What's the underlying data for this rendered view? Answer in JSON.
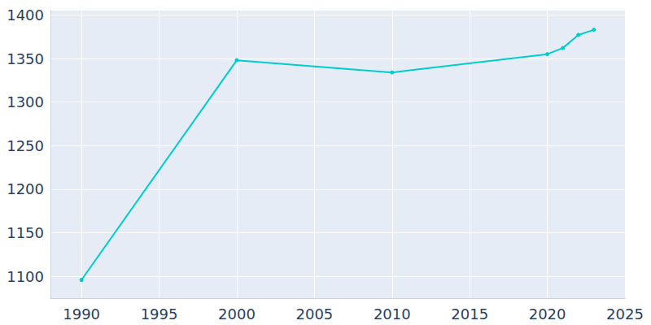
{
  "chart_data": {
    "type": "line",
    "x": [
      1990,
      2000,
      2010,
      2020,
      2021,
      2022,
      2023
    ],
    "values": [
      1096,
      1348,
      1334,
      1355,
      1362,
      1377,
      1383
    ],
    "color": "#00cccc",
    "marker": "circle",
    "xlim": [
      1988,
      2025
    ],
    "xticks": [
      1990,
      1995,
      2000,
      2005,
      2010,
      2015,
      2020,
      2025
    ],
    "ylim": [
      1075,
      1405
    ],
    "yticks": [
      1100,
      1150,
      1200,
      1250,
      1300,
      1350,
      1400
    ],
    "grid": true
  }
}
